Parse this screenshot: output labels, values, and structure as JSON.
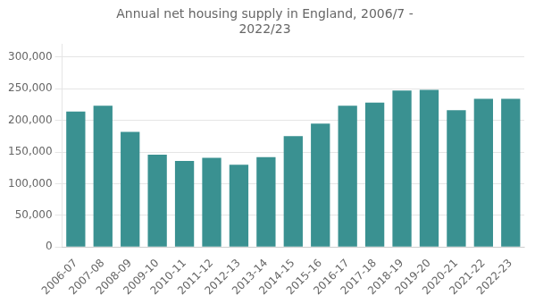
{
  "chart_data": {
    "type": "bar",
    "title": "Annual net housing supply in England, 2006/7 -\n2022/23",
    "categories": [
      "2006-07",
      "2007-08",
      "2008-09",
      "2009-10",
      "2010-11",
      "2011-12",
      "2012-13",
      "2013-14",
      "2014-15",
      "2015-16",
      "2016-17",
      "2017-18",
      "2018-19",
      "2019-20",
      "2020-21",
      "2021-22",
      "2022-23"
    ],
    "values": [
      214000,
      223000,
      182000,
      146000,
      136000,
      141000,
      130000,
      142000,
      175000,
      195000,
      223000,
      228000,
      247000,
      248000,
      216000,
      234000,
      234000
    ],
    "color": "#3a9191",
    "ylim": [
      0,
      320000
    ],
    "yticks": [
      0,
      {
        "value": 50000,
        "label": "50,000"
      },
      {
        "value": 100000,
        "label": "100,000"
      },
      {
        "value": 150000,
        "label": "150,000"
      },
      {
        "value": 200000,
        "label": "200,000"
      },
      {
        "value": 250000,
        "label": "250,000"
      },
      {
        "value": 300000,
        "label": "300,000"
      }
    ],
    "grid": true
  }
}
